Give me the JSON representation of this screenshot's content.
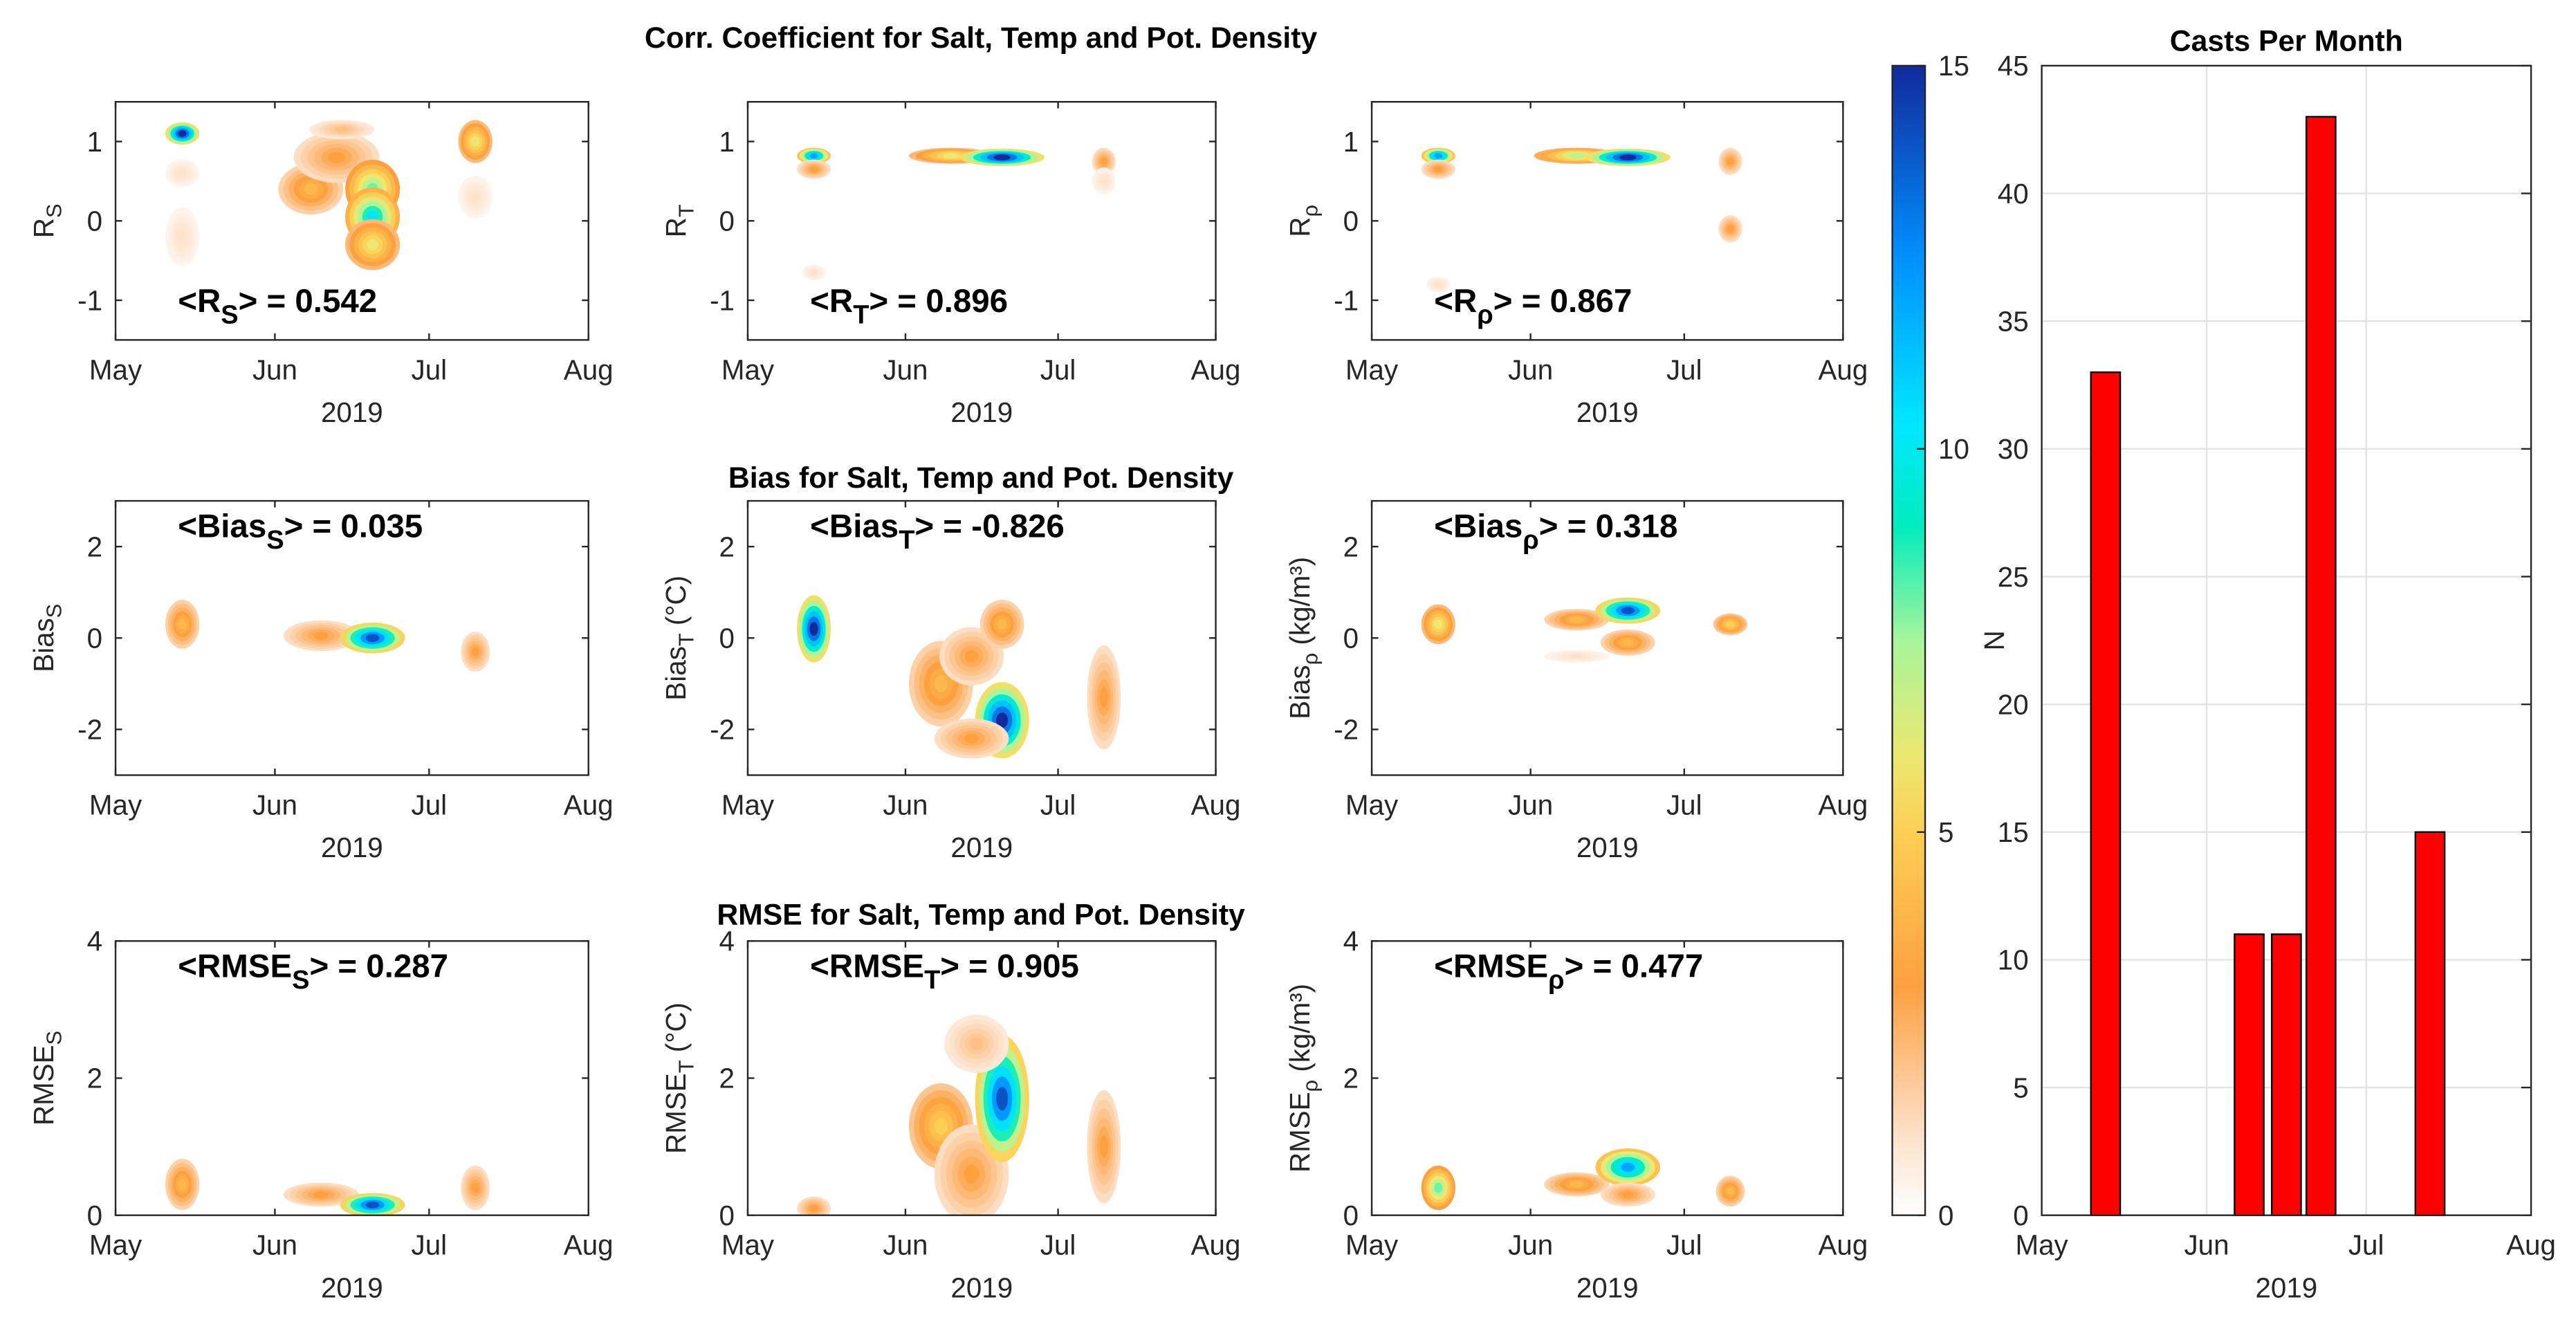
{
  "titles": {
    "row1": "Corr. Coefficient for Salt, Temp and Pot. Density",
    "row2": "Bias for Salt, Temp and Pot. Density",
    "row3": "RMSE for Salt, Temp and Pot. Density"
  },
  "x_axis": {
    "ticks": [
      {
        "label": "May",
        "day": 0
      },
      {
        "label": "Jun",
        "day": 31
      },
      {
        "label": "Jul",
        "day": 61
      },
      {
        "label": "Aug",
        "day": 92
      }
    ],
    "xlabel": "2019",
    "range_days": [
      0,
      92
    ]
  },
  "annotation_format": {
    "open": "<",
    "close": "> = "
  },
  "colorbar": {
    "label": "N",
    "range": [
      0,
      15
    ],
    "ticks": [
      "0",
      "5",
      "10",
      "15"
    ],
    "colormap": [
      [
        0,
        "#ffffff"
      ],
      [
        1,
        "#fde2cc"
      ],
      [
        3,
        "#fda040"
      ],
      [
        5,
        "#fdcf55"
      ],
      [
        6,
        "#ece871"
      ],
      [
        7.5,
        "#a8f59a"
      ],
      [
        9,
        "#00ecbe"
      ],
      [
        10.3,
        "#00e8ff"
      ],
      [
        12.5,
        "#0090ff"
      ],
      [
        15,
        "#122a9c"
      ]
    ]
  },
  "chart_data": [
    {
      "type": "heatmap",
      "id": "rs",
      "ylabel": {
        "main": "R",
        "sub": "S",
        "unit": ""
      },
      "ylim": [
        -1.5,
        1.5
      ],
      "yticks": [
        "-1",
        "0",
        "1"
      ],
      "ann_pos": "bottom",
      "annotation": {
        "main": "R",
        "sub": "S",
        "value": "0.542"
      },
      "blobs": [
        {
          "x": 13,
          "y": 1.1,
          "v": 15,
          "rx": 3,
          "ry": 0.12
        },
        {
          "x": 13,
          "y": -0.2,
          "v": 1,
          "rx": 3,
          "ry": 0.35
        },
        {
          "x": 13,
          "y": 0.6,
          "v": 1,
          "rx": 3,
          "ry": 0.15
        },
        {
          "x": 38,
          "y": 0.4,
          "v": 4,
          "rx": 6,
          "ry": 0.3
        },
        {
          "x": 43,
          "y": 0.8,
          "v": 3,
          "rx": 8,
          "ry": 0.3
        },
        {
          "x": 44,
          "y": 1.15,
          "v": 2,
          "rx": 6,
          "ry": 0.1
        },
        {
          "x": 50,
          "y": 0.4,
          "v": 8,
          "rx": 5,
          "ry": 0.35
        },
        {
          "x": 50,
          "y": 0.05,
          "v": 10,
          "rx": 5,
          "ry": 0.35
        },
        {
          "x": 50,
          "y": -0.3,
          "v": 6,
          "rx": 5,
          "ry": 0.3
        },
        {
          "x": 70,
          "y": 1.0,
          "v": 6,
          "rx": 3,
          "ry": 0.25
        },
        {
          "x": 70,
          "y": 0.3,
          "v": 1,
          "rx": 3,
          "ry": 0.25
        }
      ]
    },
    {
      "type": "heatmap",
      "id": "rt",
      "ylabel": {
        "main": "R",
        "sub": "T",
        "unit": ""
      },
      "ylim": [
        -1.5,
        1.5
      ],
      "yticks": [
        "-1",
        "0",
        "1"
      ],
      "ann_pos": "bottom",
      "annotation": {
        "main": "R",
        "sub": "T",
        "value": "0.896"
      },
      "blobs": [
        {
          "x": 13,
          "y": 0.82,
          "v": 12,
          "rx": 3,
          "ry": 0.08
        },
        {
          "x": 13,
          "y": 0.65,
          "v": 3,
          "rx": 3,
          "ry": 0.1
        },
        {
          "x": 13,
          "y": -0.65,
          "v": 1,
          "rx": 2,
          "ry": 0.08
        },
        {
          "x": 40,
          "y": 0.82,
          "v": 6,
          "rx": 8,
          "ry": 0.08
        },
        {
          "x": 50,
          "y": 0.8,
          "v": 15,
          "rx": 8,
          "ry": 0.09
        },
        {
          "x": 70,
          "y": 0.75,
          "v": 3,
          "rx": 2,
          "ry": 0.15
        },
        {
          "x": 70,
          "y": 0.5,
          "v": 1,
          "rx": 2,
          "ry": 0.15
        }
      ]
    },
    {
      "type": "heatmap",
      "id": "rrho",
      "ylabel": {
        "main": "R",
        "sub": "ρ",
        "unit": ""
      },
      "ylim": [
        -1.5,
        1.5
      ],
      "yticks": [
        "-1",
        "0",
        "1"
      ],
      "ann_pos": "bottom",
      "annotation": {
        "main": "R",
        "sub": "ρ",
        "value": "0.867"
      },
      "blobs": [
        {
          "x": 13,
          "y": 0.82,
          "v": 12,
          "rx": 3,
          "ry": 0.08
        },
        {
          "x": 13,
          "y": 0.65,
          "v": 3,
          "rx": 3,
          "ry": 0.1
        },
        {
          "x": 13,
          "y": -0.8,
          "v": 1,
          "rx": 2,
          "ry": 0.08
        },
        {
          "x": 40,
          "y": 0.82,
          "v": 7,
          "rx": 8,
          "ry": 0.08
        },
        {
          "x": 50,
          "y": 0.8,
          "v": 15,
          "rx": 8,
          "ry": 0.09
        },
        {
          "x": 70,
          "y": 0.75,
          "v": 3,
          "rx": 2,
          "ry": 0.15
        },
        {
          "x": 70,
          "y": -0.1,
          "v": 3,
          "rx": 2,
          "ry": 0.15
        }
      ]
    },
    {
      "type": "heatmap",
      "id": "bs",
      "ylabel": {
        "main": "Bias",
        "sub": "S",
        "unit": ""
      },
      "ylim": [
        -3,
        3
      ],
      "yticks": [
        "-2",
        "0",
        "2"
      ],
      "ann_pos": "top",
      "annotation": {
        "main": "Bias",
        "sub": "S",
        "value": "0.035"
      },
      "blobs": [
        {
          "x": 13,
          "y": 0.3,
          "v": 4,
          "rx": 3,
          "ry": 0.5
        },
        {
          "x": 40,
          "y": 0.05,
          "v": 3,
          "rx": 7,
          "ry": 0.3
        },
        {
          "x": 50,
          "y": 0.0,
          "v": 14,
          "rx": 6,
          "ry": 0.3
        },
        {
          "x": 70,
          "y": -0.3,
          "v": 3,
          "rx": 2.5,
          "ry": 0.4
        }
      ]
    },
    {
      "type": "heatmap",
      "id": "bt",
      "ylabel": {
        "main": "Bias",
        "sub": "T",
        "unit": " (°C)"
      },
      "ylim": [
        -3,
        3
      ],
      "yticks": [
        "-2",
        "0",
        "2"
      ],
      "ann_pos": "top",
      "annotation": {
        "main": "Bias",
        "sub": "T",
        "value": "-0.826"
      },
      "blobs": [
        {
          "x": 13,
          "y": 0.2,
          "v": 15,
          "rx": 3,
          "ry": 0.7
        },
        {
          "x": 38,
          "y": -1.0,
          "v": 4,
          "rx": 6,
          "ry": 0.9
        },
        {
          "x": 44,
          "y": -0.4,
          "v": 3,
          "rx": 6,
          "ry": 0.6
        },
        {
          "x": 50,
          "y": 0.3,
          "v": 4,
          "rx": 4,
          "ry": 0.5
        },
        {
          "x": 50,
          "y": -1.8,
          "v": 15,
          "rx": 5,
          "ry": 0.8
        },
        {
          "x": 44,
          "y": -2.2,
          "v": 3,
          "rx": 7,
          "ry": 0.4
        },
        {
          "x": 70,
          "y": -1.3,
          "v": 3,
          "rx": 3,
          "ry": 1.1
        }
      ]
    },
    {
      "type": "heatmap",
      "id": "brho",
      "ylabel": {
        "main": "Bias",
        "sub": "ρ",
        "unit": " (kg/m³)"
      },
      "ylim": [
        -3,
        3
      ],
      "yticks": [
        "-2",
        "0",
        "2"
      ],
      "ann_pos": "top",
      "annotation": {
        "main": "Bias",
        "sub": "ρ",
        "value": "0.318"
      },
      "blobs": [
        {
          "x": 13,
          "y": 0.3,
          "v": 6,
          "rx": 3,
          "ry": 0.4
        },
        {
          "x": 40,
          "y": 0.4,
          "v": 4,
          "rx": 6,
          "ry": 0.2
        },
        {
          "x": 50,
          "y": 0.6,
          "v": 14,
          "rx": 6,
          "ry": 0.25
        },
        {
          "x": 50,
          "y": -0.1,
          "v": 4,
          "rx": 5,
          "ry": 0.25
        },
        {
          "x": 40,
          "y": -0.4,
          "v": 1,
          "rx": 6,
          "ry": 0.1
        },
        {
          "x": 70,
          "y": 0.3,
          "v": 5,
          "rx": 3,
          "ry": 0.2
        }
      ]
    },
    {
      "type": "heatmap",
      "id": "es",
      "ylabel": {
        "main": "RMSE",
        "sub": "S",
        "unit": ""
      },
      "ylim": [
        0,
        4
      ],
      "yticks": [
        "0",
        "2",
        "4"
      ],
      "ann_pos": "top",
      "annotation": {
        "main": "RMSE",
        "sub": "S",
        "value": "0.287"
      },
      "blobs": [
        {
          "x": 13,
          "y": 0.45,
          "v": 4,
          "rx": 3,
          "ry": 0.35
        },
        {
          "x": 40,
          "y": 0.3,
          "v": 3,
          "rx": 7,
          "ry": 0.15
        },
        {
          "x": 50,
          "y": 0.15,
          "v": 14,
          "rx": 6,
          "ry": 0.15
        },
        {
          "x": 70,
          "y": 0.4,
          "v": 3,
          "rx": 2.5,
          "ry": 0.3
        }
      ]
    },
    {
      "type": "heatmap",
      "id": "et",
      "ylabel": {
        "main": "RMSE",
        "sub": "T",
        "unit": " (°C)"
      },
      "ylim": [
        0,
        4
      ],
      "yticks": [
        "0",
        "2",
        "4"
      ],
      "ann_pos": "top",
      "annotation": {
        "main": "RMSE",
        "sub": "T",
        "value": "0.905"
      },
      "blobs": [
        {
          "x": 13,
          "y": 0.1,
          "v": 3,
          "rx": 3,
          "ry": 0.15
        },
        {
          "x": 38,
          "y": 1.3,
          "v": 5,
          "rx": 6,
          "ry": 0.6
        },
        {
          "x": 44,
          "y": 0.6,
          "v": 3,
          "rx": 7,
          "ry": 0.7
        },
        {
          "x": 50,
          "y": 1.7,
          "v": 14,
          "rx": 5,
          "ry": 0.9
        },
        {
          "x": 45,
          "y": 2.5,
          "v": 2,
          "rx": 6,
          "ry": 0.4
        },
        {
          "x": 70,
          "y": 1.0,
          "v": 3,
          "rx": 3,
          "ry": 0.8
        }
      ]
    },
    {
      "type": "heatmap",
      "id": "erho",
      "ylabel": {
        "main": "RMSE",
        "sub": "ρ",
        "unit": " (kg/m³)"
      },
      "ylim": [
        0,
        4
      ],
      "yticks": [
        "0",
        "2",
        "4"
      ],
      "ann_pos": "top",
      "annotation": {
        "main": "RMSE",
        "sub": "ρ",
        "value": "0.477"
      },
      "blobs": [
        {
          "x": 13,
          "y": 0.4,
          "v": 8,
          "rx": 3,
          "ry": 0.3
        },
        {
          "x": 40,
          "y": 0.45,
          "v": 4,
          "rx": 6,
          "ry": 0.15
        },
        {
          "x": 50,
          "y": 0.7,
          "v": 12,
          "rx": 6,
          "ry": 0.25
        },
        {
          "x": 50,
          "y": 0.3,
          "v": 3,
          "rx": 5,
          "ry": 0.15
        },
        {
          "x": 70,
          "y": 0.35,
          "v": 4,
          "rx": 2.5,
          "ry": 0.2
        }
      ]
    },
    {
      "type": "bar",
      "id": "casts",
      "title": "Casts Per Month",
      "ylabel": "N",
      "ylim": [
        0,
        45
      ],
      "yticks": [
        "0",
        "5",
        "10",
        "15",
        "20",
        "25",
        "30",
        "35",
        "40",
        "45"
      ],
      "bar_color": "#ff0000",
      "bar_width_days": 5.5,
      "bars": [
        {
          "day": 12,
          "value": 33
        },
        {
          "day": 39,
          "value": 11
        },
        {
          "day": 46,
          "value": 11
        },
        {
          "day": 52.5,
          "value": 43
        },
        {
          "day": 73,
          "value": 15
        }
      ]
    }
  ]
}
